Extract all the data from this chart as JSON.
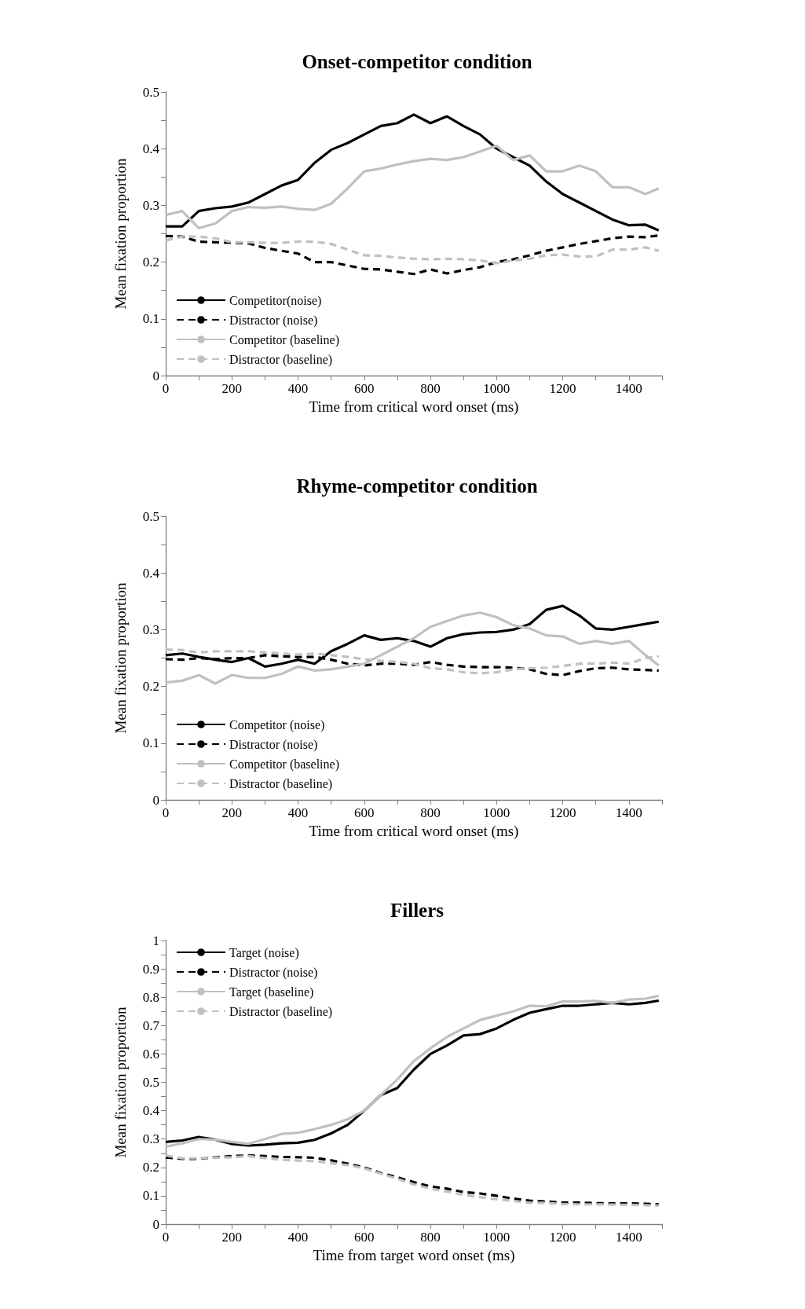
{
  "chart_data": [
    {
      "type": "line",
      "title": "Onset-competitor condition",
      "xlabel": "Time from critical word onset (ms)",
      "ylabel": "Mean fixation proportion",
      "x": [
        0,
        50,
        100,
        150,
        200,
        250,
        300,
        350,
        400,
        450,
        500,
        550,
        600,
        650,
        700,
        750,
        800,
        850,
        900,
        950,
        1000,
        1050,
        1100,
        1150,
        1200,
        1250,
        1300,
        1350,
        1400,
        1450,
        1490
      ],
      "series": [
        {
          "name": "Competitor(noise)",
          "color": "#000000",
          "line_style": "solid",
          "values": [
            0.263,
            0.263,
            0.29,
            0.295,
            0.298,
            0.305,
            0.32,
            0.335,
            0.345,
            0.375,
            0.398,
            0.41,
            0.425,
            0.44,
            0.445,
            0.46,
            0.445,
            0.457,
            0.44,
            0.425,
            0.4,
            0.385,
            0.37,
            0.342,
            0.32,
            0.305,
            0.29,
            0.275,
            0.265,
            0.266,
            0.256
          ]
        },
        {
          "name": "Distractor (noise)",
          "color": "#000000",
          "line_style": "dashed",
          "values": [
            0.246,
            0.245,
            0.236,
            0.235,
            0.234,
            0.233,
            0.225,
            0.22,
            0.215,
            0.2,
            0.2,
            0.194,
            0.188,
            0.187,
            0.183,
            0.179,
            0.187,
            0.18,
            0.186,
            0.191,
            0.2,
            0.205,
            0.212,
            0.22,
            0.226,
            0.232,
            0.237,
            0.242,
            0.245,
            0.244,
            0.247
          ]
        },
        {
          "name": "Competitor (baseline)",
          "color": "#c0c0c0",
          "line_style": "solid",
          "values": [
            0.283,
            0.29,
            0.26,
            0.268,
            0.29,
            0.297,
            0.296,
            0.298,
            0.294,
            0.292,
            0.303,
            0.33,
            0.36,
            0.365,
            0.372,
            0.378,
            0.382,
            0.38,
            0.385,
            0.395,
            0.405,
            0.38,
            0.388,
            0.36,
            0.36,
            0.37,
            0.36,
            0.332,
            0.332,
            0.32,
            0.33
          ]
        },
        {
          "name": "Distractor (baseline)",
          "color": "#c0c0c0",
          "line_style": "dashed",
          "values": [
            0.238,
            0.245,
            0.245,
            0.242,
            0.235,
            0.235,
            0.234,
            0.234,
            0.236,
            0.236,
            0.232,
            0.222,
            0.212,
            0.211,
            0.208,
            0.206,
            0.205,
            0.206,
            0.205,
            0.203,
            0.198,
            0.203,
            0.206,
            0.212,
            0.213,
            0.21,
            0.21,
            0.222,
            0.222,
            0.226,
            0.22
          ]
        }
      ],
      "xlim": [
        0,
        1500
      ],
      "xticks": [
        0,
        {
          "value": 100,
          "label": null
        },
        200,
        {
          "value": 300,
          "label": null
        },
        400,
        {
          "value": 500,
          "label": null
        },
        600,
        {
          "value": 700,
          "label": null
        },
        800,
        {
          "value": 900,
          "label": null
        },
        1000,
        {
          "value": 1100,
          "label": null
        },
        1200,
        {
          "value": 1300,
          "label": null
        },
        1400,
        {
          "value": 1500,
          "label": null
        }
      ],
      "ylim": [
        0,
        0.5
      ],
      "yticks": [
        0,
        {
          "value": 0.05,
          "label": null
        },
        0.1,
        {
          "value": 0.15,
          "label": null
        },
        0.2,
        {
          "value": 0.25,
          "label": null
        },
        0.3,
        {
          "value": 0.35,
          "label": null
        },
        0.4,
        {
          "value": 0.45,
          "label": null
        },
        0.5
      ],
      "grid": false,
      "legend": "bottom left",
      "marker": "none"
    },
    {
      "type": "line",
      "title": "Rhyme-competitor condition",
      "xlabel": "Time from critical word onset (ms)",
      "ylabel": "Mean fixation proportion",
      "x": [
        0,
        50,
        100,
        150,
        200,
        250,
        300,
        350,
        400,
        450,
        500,
        550,
        600,
        650,
        700,
        750,
        800,
        850,
        900,
        950,
        1000,
        1050,
        1100,
        1150,
        1200,
        1250,
        1300,
        1350,
        1400,
        1450,
        1490
      ],
      "series": [
        {
          "name": "Competitor (noise)",
          "color": "#000000",
          "line_style": "solid",
          "values": [
            0.255,
            0.258,
            0.252,
            0.247,
            0.243,
            0.25,
            0.235,
            0.24,
            0.247,
            0.24,
            0.262,
            0.275,
            0.29,
            0.282,
            0.285,
            0.28,
            0.27,
            0.285,
            0.292,
            0.295,
            0.296,
            0.3,
            0.31,
            0.335,
            0.342,
            0.325,
            0.302,
            0.3,
            0.305,
            0.31,
            0.314
          ]
        },
        {
          "name": "Distractor (noise)",
          "color": "#000000",
          "line_style": "dashed",
          "values": [
            0.248,
            0.247,
            0.25,
            0.248,
            0.25,
            0.25,
            0.255,
            0.253,
            0.252,
            0.252,
            0.247,
            0.24,
            0.237,
            0.24,
            0.24,
            0.238,
            0.243,
            0.238,
            0.235,
            0.234,
            0.234,
            0.233,
            0.23,
            0.222,
            0.22,
            0.227,
            0.232,
            0.233,
            0.23,
            0.229,
            0.228
          ]
        },
        {
          "name": "Competitor (baseline)",
          "color": "#c0c0c0",
          "line_style": "solid",
          "values": [
            0.207,
            0.21,
            0.22,
            0.205,
            0.22,
            0.215,
            0.215,
            0.222,
            0.235,
            0.228,
            0.23,
            0.235,
            0.24,
            0.255,
            0.27,
            0.285,
            0.305,
            0.315,
            0.325,
            0.33,
            0.322,
            0.308,
            0.302,
            0.29,
            0.288,
            0.275,
            0.28,
            0.275,
            0.28,
            0.255,
            0.237
          ]
        },
        {
          "name": "Distractor (baseline)",
          "color": "#c0c0c0",
          "line_style": "dashed",
          "values": [
            0.265,
            0.264,
            0.26,
            0.262,
            0.262,
            0.262,
            0.26,
            0.258,
            0.256,
            0.258,
            0.255,
            0.252,
            0.248,
            0.245,
            0.243,
            0.24,
            0.232,
            0.23,
            0.225,
            0.223,
            0.225,
            0.23,
            0.232,
            0.233,
            0.236,
            0.24,
            0.24,
            0.242,
            0.24,
            0.25,
            0.253
          ]
        }
      ],
      "xlim": [
        0,
        1500
      ],
      "xticks": [
        0,
        {
          "value": 100,
          "label": null
        },
        200,
        {
          "value": 300,
          "label": null
        },
        400,
        {
          "value": 500,
          "label": null
        },
        600,
        {
          "value": 700,
          "label": null
        },
        800,
        {
          "value": 900,
          "label": null
        },
        1000,
        {
          "value": 1100,
          "label": null
        },
        1200,
        {
          "value": 1300,
          "label": null
        },
        1400,
        {
          "value": 1500,
          "label": null
        }
      ],
      "ylim": [
        0,
        0.5
      ],
      "yticks": [
        0,
        {
          "value": 0.05,
          "label": null
        },
        0.1,
        {
          "value": 0.15,
          "label": null
        },
        0.2,
        {
          "value": 0.25,
          "label": null
        },
        0.3,
        {
          "value": 0.35,
          "label": null
        },
        0.4,
        {
          "value": 0.45,
          "label": null
        },
        0.5
      ],
      "grid": false,
      "legend": "bottom left",
      "marker": "none"
    },
    {
      "type": "line",
      "title": "Fillers",
      "xlabel": "Time from target word onset (ms)",
      "ylabel": "Mean fixation proportion",
      "x": [
        0,
        50,
        100,
        150,
        200,
        250,
        300,
        350,
        400,
        450,
        500,
        550,
        600,
        650,
        700,
        750,
        800,
        850,
        900,
        950,
        1000,
        1050,
        1100,
        1150,
        1200,
        1250,
        1300,
        1350,
        1400,
        1450,
        1490
      ],
      "series": [
        {
          "name": "Target (noise)",
          "color": "#000000",
          "line_style": "solid",
          "values": [
            0.29,
            0.295,
            0.307,
            0.298,
            0.283,
            0.277,
            0.28,
            0.285,
            0.287,
            0.297,
            0.32,
            0.35,
            0.4,
            0.455,
            0.48,
            0.545,
            0.6,
            0.63,
            0.665,
            0.67,
            0.69,
            0.72,
            0.745,
            0.758,
            0.77,
            0.77,
            0.775,
            0.78,
            0.775,
            0.78,
            0.788
          ]
        },
        {
          "name": "Distractor (noise)",
          "color": "#000000",
          "line_style": "dashed",
          "values": [
            0.235,
            0.23,
            0.23,
            0.236,
            0.24,
            0.242,
            0.24,
            0.237,
            0.236,
            0.234,
            0.225,
            0.213,
            0.2,
            0.18,
            0.165,
            0.148,
            0.133,
            0.125,
            0.113,
            0.108,
            0.1,
            0.09,
            0.083,
            0.08,
            0.076,
            0.076,
            0.074,
            0.073,
            0.073,
            0.072,
            0.07
          ]
        },
        {
          "name": "Target (baseline)",
          "color": "#c0c0c0",
          "line_style": "solid",
          "values": [
            0.273,
            0.285,
            0.3,
            0.298,
            0.29,
            0.283,
            0.3,
            0.318,
            0.322,
            0.335,
            0.35,
            0.37,
            0.4,
            0.455,
            0.51,
            0.575,
            0.62,
            0.66,
            0.69,
            0.72,
            0.735,
            0.75,
            0.77,
            0.768,
            0.785,
            0.785,
            0.787,
            0.78,
            0.792,
            0.795,
            0.805
          ]
        },
        {
          "name": "Distractor (baseline)",
          "color": "#c0c0c0",
          "line_style": "dashed",
          "values": [
            0.242,
            0.232,
            0.232,
            0.235,
            0.235,
            0.24,
            0.233,
            0.227,
            0.224,
            0.222,
            0.215,
            0.208,
            0.197,
            0.178,
            0.16,
            0.14,
            0.125,
            0.115,
            0.103,
            0.095,
            0.088,
            0.082,
            0.075,
            0.075,
            0.071,
            0.07,
            0.07,
            0.069,
            0.068,
            0.067,
            0.065
          ]
        }
      ],
      "xlim": [
        0,
        1500
      ],
      "xticks": [
        0,
        {
          "value": 100,
          "label": null
        },
        200,
        {
          "value": 300,
          "label": null
        },
        400,
        {
          "value": 500,
          "label": null
        },
        600,
        {
          "value": 700,
          "label": null
        },
        800,
        {
          "value": 900,
          "label": null
        },
        1000,
        {
          "value": 1100,
          "label": null
        },
        1200,
        {
          "value": 1300,
          "label": null
        },
        1400,
        {
          "value": 1500,
          "label": null
        }
      ],
      "ylim": [
        0,
        1
      ],
      "yticks": [
        0,
        {
          "value": 0.05,
          "label": null
        },
        0.1,
        {
          "value": 0.15,
          "label": null
        },
        0.2,
        {
          "value": 0.25,
          "label": null
        },
        0.3,
        {
          "value": 0.35,
          "label": null
        },
        0.4,
        {
          "value": 0.45,
          "label": null
        },
        0.5,
        {
          "value": 0.55,
          "label": null
        },
        0.6,
        {
          "value": 0.65,
          "label": null
        },
        0.7,
        {
          "value": 0.75,
          "label": null
        },
        0.8,
        {
          "value": 0.85,
          "label": null
        },
        0.9,
        {
          "value": 0.95,
          "label": null
        },
        1
      ],
      "grid": false,
      "legend": "top left",
      "marker": "none"
    }
  ]
}
